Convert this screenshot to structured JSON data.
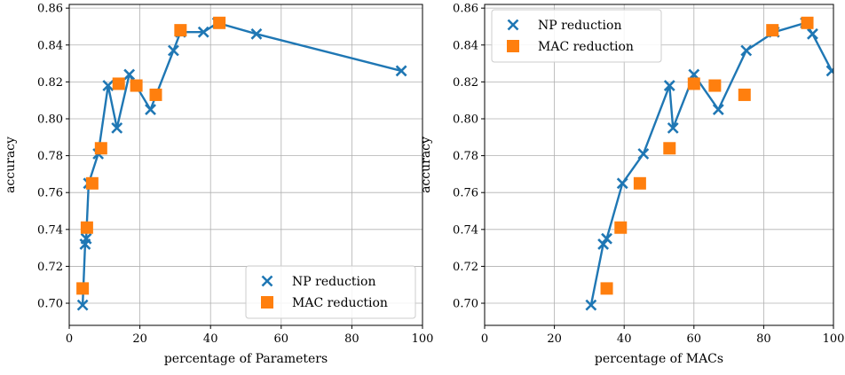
{
  "colors": {
    "np": "#1f77b4",
    "mac": "#ff7f0e",
    "grid": "#b0b0b0"
  },
  "chart_data": [
    {
      "type": "line",
      "xlabel": "percentage of Parameters",
      "ylabel": "accuracy",
      "xlim": [
        0,
        100
      ],
      "ylim": [
        0.688,
        0.862
      ],
      "xticks": [
        0,
        20,
        40,
        60,
        80,
        100
      ],
      "yticks": [
        0.7,
        0.72,
        0.74,
        0.76,
        0.78,
        0.8,
        0.82,
        0.84,
        0.86
      ],
      "grid": true,
      "legend_position": "lower-right",
      "series": [
        {
          "name": "NP reduction",
          "marker": "x",
          "line": true,
          "x": [
            3.8,
            4.5,
            4.8,
            5.5,
            8.2,
            11,
            13.5,
            17,
            23,
            29.5,
            31.5,
            38,
            42,
            53,
            94
          ],
          "y": [
            0.699,
            0.732,
            0.735,
            0.765,
            0.781,
            0.818,
            0.795,
            0.824,
            0.805,
            0.837,
            0.847,
            0.847,
            0.852,
            0.846,
            0.826
          ]
        },
        {
          "name": "MAC reduction",
          "marker": "s",
          "line": false,
          "x": [
            3.8,
            5,
            6.5,
            9,
            14,
            19,
            24.5,
            31.5,
            42.5
          ],
          "y": [
            0.708,
            0.741,
            0.765,
            0.784,
            0.819,
            0.818,
            0.813,
            0.848,
            0.852
          ]
        }
      ]
    },
    {
      "type": "line",
      "xlabel": "percentage of MACs",
      "ylabel": "accuracy",
      "xlim": [
        0,
        100
      ],
      "ylim": [
        0.688,
        0.862
      ],
      "xticks": [
        0,
        20,
        40,
        60,
        80,
        100
      ],
      "yticks": [
        0.7,
        0.72,
        0.74,
        0.76,
        0.78,
        0.8,
        0.82,
        0.84,
        0.86
      ],
      "grid": true,
      "legend_position": "upper-left",
      "series": [
        {
          "name": "NP reduction",
          "marker": "x",
          "line": true,
          "x": [
            30.5,
            34,
            35,
            39.5,
            45.5,
            53,
            54,
            60,
            67,
            75,
            83,
            92,
            94,
            99.5
          ],
          "y": [
            0.699,
            0.732,
            0.735,
            0.765,
            0.781,
            0.818,
            0.795,
            0.824,
            0.805,
            0.837,
            0.847,
            0.852,
            0.846,
            0.826
          ]
        },
        {
          "name": "MAC reduction",
          "marker": "s",
          "line": false,
          "x": [
            35,
            39,
            44.5,
            53,
            60,
            66,
            74.5,
            82.5,
            92.5
          ],
          "y": [
            0.708,
            0.741,
            0.765,
            0.784,
            0.819,
            0.818,
            0.813,
            0.848,
            0.852
          ]
        }
      ]
    }
  ]
}
